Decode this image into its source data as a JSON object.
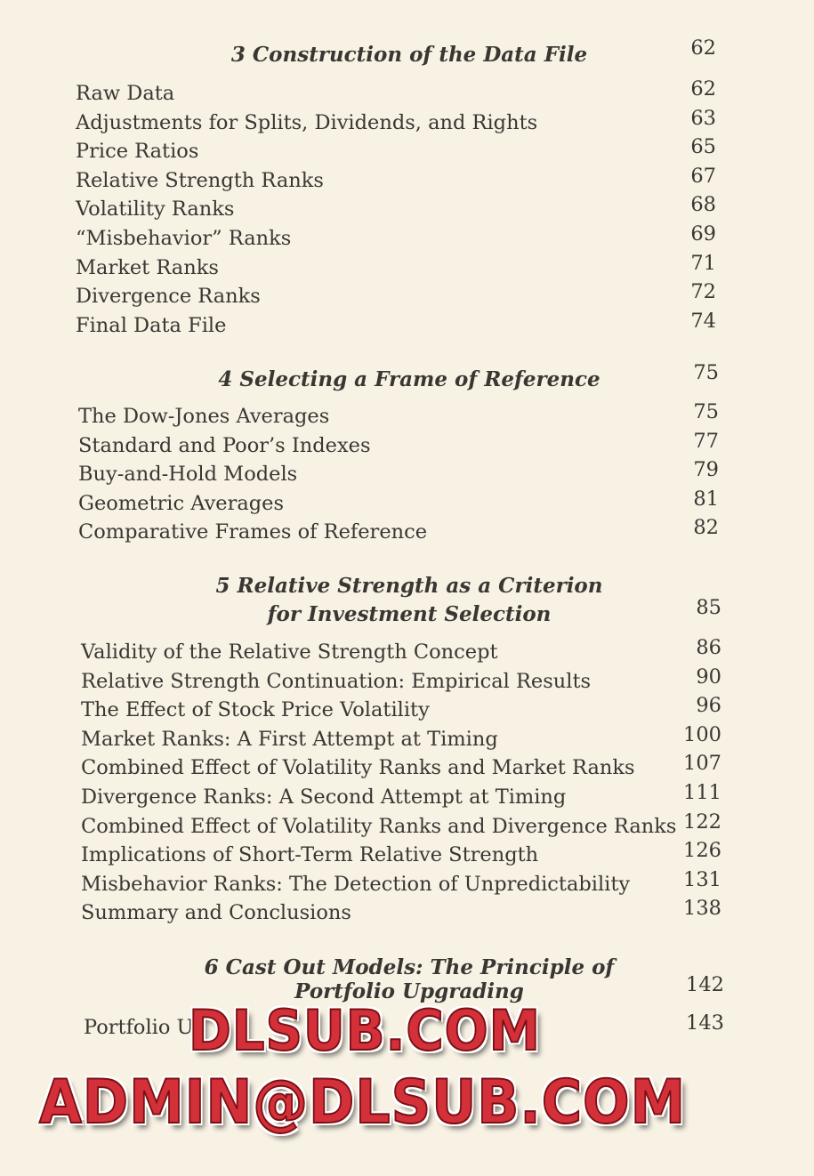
{
  "chapters": [
    {
      "title": "3  Construction of the Data File",
      "page": "62",
      "entries": [
        {
          "title": "Raw Data",
          "page": "62"
        },
        {
          "title": "Adjustments for Splits, Dividends, and Rights",
          "page": "63"
        },
        {
          "title": "Price Ratios",
          "page": "65"
        },
        {
          "title": "Relative Strength Ranks",
          "page": "67"
        },
        {
          "title": "Volatility Ranks",
          "page": "68"
        },
        {
          "title": "“Misbehavior” Ranks",
          "page": "69"
        },
        {
          "title": "Market Ranks",
          "page": "71"
        },
        {
          "title": "Divergence Ranks",
          "page": "72"
        },
        {
          "title": "Final Data File",
          "page": "74"
        }
      ]
    },
    {
      "title": "4  Selecting a Frame of Reference",
      "page": "75",
      "entries": [
        {
          "title": "The Dow-Jones Averages",
          "page": "75"
        },
        {
          "title": "Standard and Poor’s Indexes",
          "page": "77"
        },
        {
          "title": "Buy-and-Hold Models",
          "page": "79"
        },
        {
          "title": "Geometric Averages",
          "page": "81"
        },
        {
          "title": "Comparative Frames of Reference",
          "page": "82"
        }
      ]
    },
    {
      "title": "5  Relative Strength as a Criterion",
      "title2": "for Investment Selection",
      "page": "85",
      "entries": [
        {
          "title": "Validity of the Relative Strength Concept",
          "page": "86"
        },
        {
          "title": "Relative Strength Continuation: Empirical Results",
          "page": "90"
        },
        {
          "title": "The Effect of Stock Price Volatility",
          "page": "96"
        },
        {
          "title": "Market Ranks: A First Attempt at Timing",
          "page": "100"
        },
        {
          "title": "Combined Effect of Volatility Ranks and Market Ranks",
          "page": "107"
        },
        {
          "title": "Divergence Ranks: A Second Attempt at Timing",
          "page": "111"
        },
        {
          "title": "Combined Effect of Volatility Ranks and Divergence Ranks",
          "page": "122"
        },
        {
          "title": "Implications of Short-Term Relative Strength",
          "page": "126"
        },
        {
          "title": "Misbehavior Ranks: The Detection of Unpredictability",
          "page": "131"
        },
        {
          "title": "Summary and Conclusions",
          "page": "138"
        }
      ]
    },
    {
      "title": "6  Cast Out Models: The Principle of",
      "title2": "Portfolio Upgrading",
      "page": "142",
      "entries": [
        {
          "title": "Portfolio U",
          "page": "143"
        }
      ]
    }
  ],
  "watermark": {
    "line1": "DLSUB.COM",
    "line2": "ADMIN@DLSUB.COM"
  }
}
